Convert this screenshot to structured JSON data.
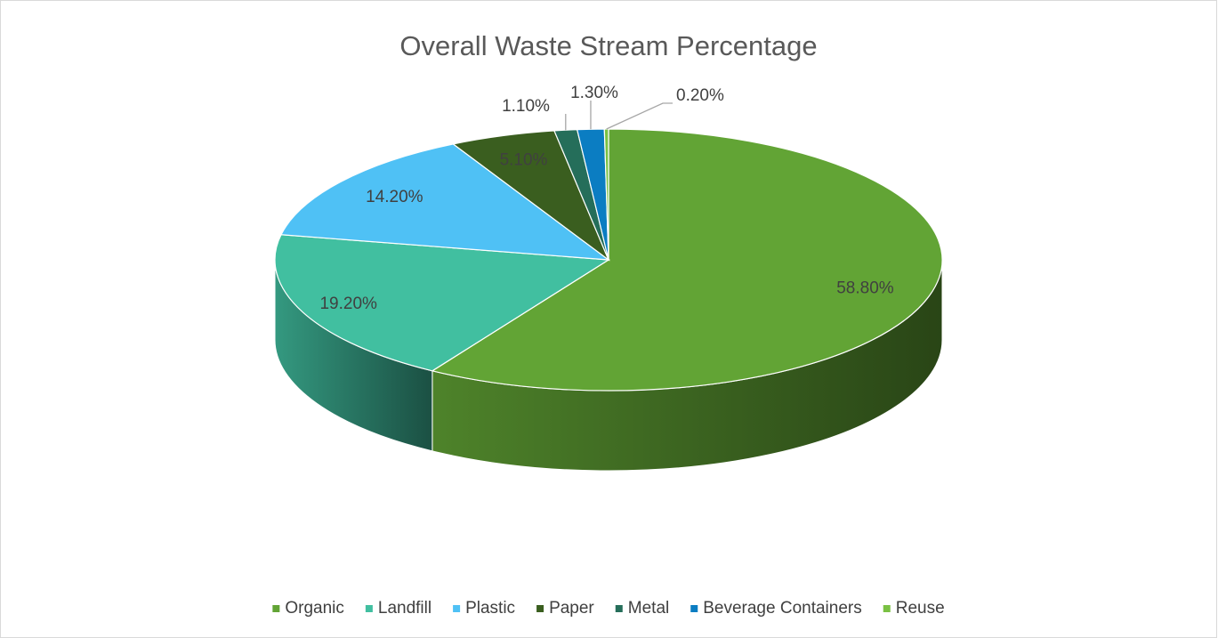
{
  "chart_data": {
    "type": "pie",
    "title": "Overall Waste Stream Percentage",
    "categories": [
      "Organic",
      "Landfill",
      "Plastic",
      "Paper",
      "Metal",
      "Beverage Containers",
      "Reuse"
    ],
    "values": [
      58.8,
      19.2,
      14.2,
      5.1,
      1.1,
      1.3,
      0.2
    ],
    "value_labels": [
      "58.80%",
      "19.20%",
      "14.20%",
      "5.10%",
      "1.10%",
      "1.30%",
      "0.20%"
    ],
    "colors": [
      "#62a435",
      "#41bfa0",
      "#4fc1f5",
      "#3a5e1f",
      "#256e5a",
      "#0b7dc2",
      "#7ac143"
    ],
    "legend": "bottom"
  }
}
